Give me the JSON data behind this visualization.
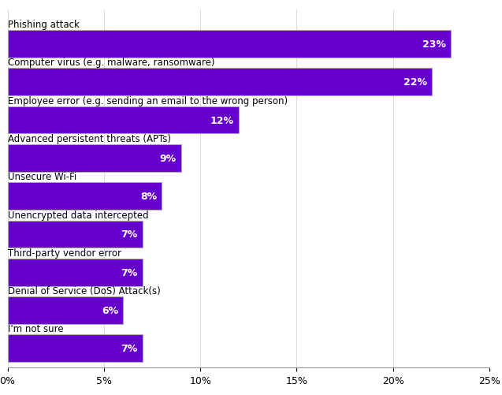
{
  "categories": [
    "I'm not sure",
    "Denial of Service (DoS) Attack(s)",
    "Third-party vendor error",
    "Unencrypted data intercepted",
    "Unsecure Wi-Fi",
    "Advanced persistent threats (APTs)",
    "Employee error (e.g. sending an email to the wrong person)",
    "Computer virus (e.g. malware, ransomware)",
    "Phishing attack"
  ],
  "values": [
    7,
    6,
    7,
    7,
    8,
    9,
    12,
    22,
    23
  ],
  "bar_color": "#6600cc",
  "bar_edgecolor": "#aaaaaa",
  "label_color": "#ffffff",
  "text_color": "#000000",
  "background_color": "#ffffff",
  "xlim": [
    0,
    25
  ],
  "xticks": [
    0,
    5,
    10,
    15,
    20,
    25
  ],
  "xticklabels": [
    "0%",
    "5%",
    "10%",
    "15%",
    "20%",
    "25%"
  ],
  "bar_height": 0.72,
  "label_fontsize": 9,
  "tick_fontsize": 9,
  "category_fontsize": 8.5,
  "grid_color": "#cccccc"
}
